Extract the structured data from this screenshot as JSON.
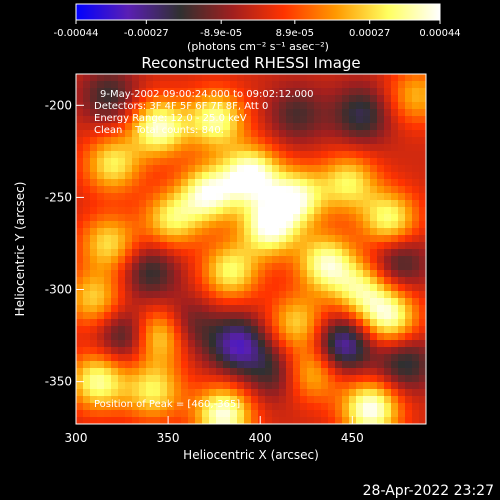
{
  "chart_data": {
    "type": "heatmap",
    "title": "Reconstructed RHESSI Image",
    "xlabel": "Heliocentric X (arcsec)",
    "ylabel": "Heliocentric Y (arcsec)",
    "xlim": [
      300,
      490
    ],
    "ylim": [
      -373,
      -183
    ],
    "x_ticks": [
      300,
      350,
      400,
      450
    ],
    "y_ticks": [
      -200,
      -250,
      -300,
      -350
    ],
    "colorbar": {
      "range": [
        -0.00044,
        0.00044
      ],
      "tick_values": [
        -0.00044,
        -0.00027,
        -8.9e-05,
        8.9e-05,
        0.00027,
        0.00044
      ],
      "tick_labels": [
        "-0.00044",
        "-0.00027",
        "-8.9e-05",
        "8.9e-05",
        "0.00027",
        "0.00044"
      ],
      "unit_label": "(photons cm⁻² s⁻¹ asec⁻²)",
      "colormap": [
        "#0000ff",
        "#5a1fb4",
        "#303030",
        "#a01f1f",
        "#ff3300",
        "#ff9900",
        "#ffff60",
        "#ffffff"
      ]
    },
    "annotations": [
      "9-May-2002 09:00:24.000 to 09:02:12.000",
      "Detectors: 3F 4F 5F 6F 7F 8F, Att 0",
      "Energy Range: 12.0 - 25.0 keV",
      "Clean    Total counts: 840."
    ],
    "peak_text": "Position of Peak = [460,-365]",
    "peak": [
      460,
      -365
    ],
    "blobs": [
      {
        "x": 345,
        "y": -212,
        "v": 0.0004
      },
      {
        "x": 376,
        "y": -208,
        "v": 0.00036
      },
      {
        "x": 320,
        "y": -232,
        "v": 0.0003
      },
      {
        "x": 395,
        "y": -238,
        "v": 0.00044
      },
      {
        "x": 372,
        "y": -248,
        "v": 0.0004
      },
      {
        "x": 420,
        "y": -250,
        "v": 0.00038
      },
      {
        "x": 448,
        "y": -242,
        "v": 0.0003
      },
      {
        "x": 470,
        "y": -262,
        "v": 0.00034
      },
      {
        "x": 405,
        "y": -266,
        "v": 0.00042
      },
      {
        "x": 436,
        "y": -286,
        "v": 0.00038
      },
      {
        "x": 352,
        "y": -262,
        "v": 0.0003
      },
      {
        "x": 318,
        "y": -275,
        "v": 0.00028
      },
      {
        "x": 384,
        "y": -290,
        "v": 0.00032
      },
      {
        "x": 310,
        "y": -305,
        "v": 0.00026
      },
      {
        "x": 470,
        "y": -315,
        "v": 0.00038
      },
      {
        "x": 455,
        "y": -300,
        "v": 0.0003
      },
      {
        "x": 345,
        "y": -325,
        "v": 0.00036
      },
      {
        "x": 420,
        "y": -318,
        "v": 0.00026
      },
      {
        "x": 312,
        "y": -350,
        "v": 0.00036
      },
      {
        "x": 342,
        "y": -355,
        "v": 0.0003
      },
      {
        "x": 380,
        "y": -368,
        "v": 0.00042
      },
      {
        "x": 428,
        "y": -345,
        "v": 0.00026
      },
      {
        "x": 460,
        "y": -365,
        "v": 0.00044
      },
      {
        "x": 485,
        "y": -195,
        "v": 0.00022
      },
      {
        "x": 340,
        "y": -290,
        "v": -0.0002
      },
      {
        "x": 455,
        "y": -205,
        "v": -0.00022
      },
      {
        "x": 420,
        "y": -205,
        "v": -0.00016
      },
      {
        "x": 445,
        "y": -330,
        "v": -0.00034
      },
      {
        "x": 388,
        "y": -330,
        "v": -0.00032
      },
      {
        "x": 328,
        "y": -325,
        "v": -0.00024
      },
      {
        "x": 318,
        "y": -195,
        "v": -0.00018
      },
      {
        "x": 478,
        "y": -340,
        "v": -0.00022
      },
      {
        "x": 408,
        "y": -345,
        "v": -0.00018
      },
      {
        "x": 475,
        "y": -285,
        "v": -0.0002
      },
      {
        "x": 360,
        "y": -320,
        "v": -0.00018
      }
    ]
  },
  "timestamp": "28-Apr-2022 23:27"
}
